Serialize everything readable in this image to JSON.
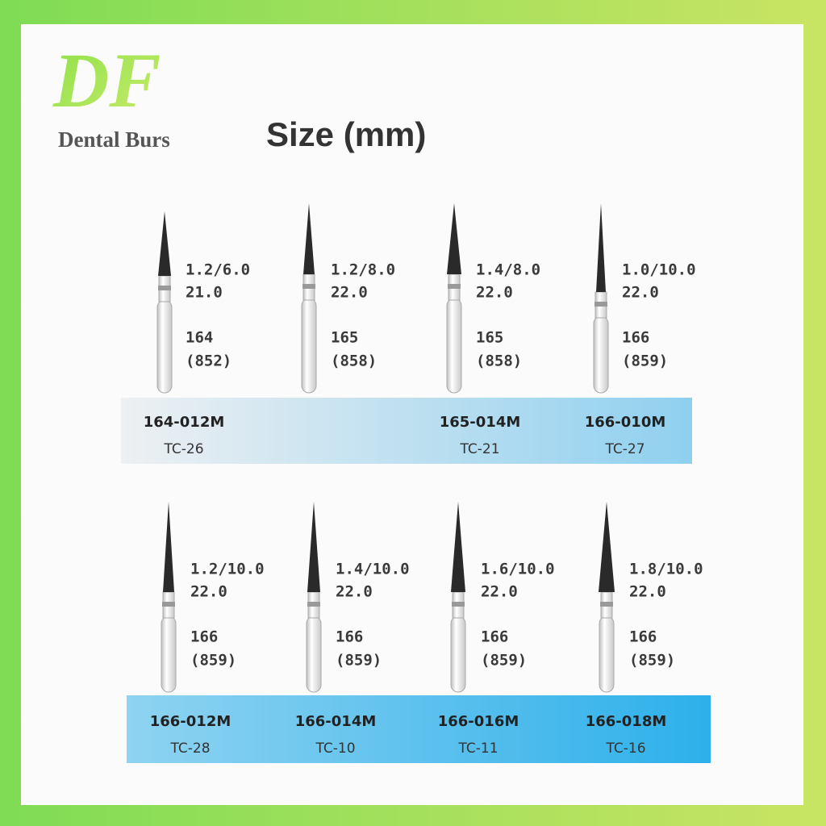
{
  "header": {
    "logo": "DF",
    "brand": "Dental Burs",
    "title": "Size (mm)"
  },
  "rows": [
    {
      "items": [
        {
          "spec": "1.2/6.0",
          "length": "21.0",
          "iso": "164",
          "alt": "(852)",
          "code": "164-012M",
          "tc": "TC-26"
        },
        {
          "spec": "1.2/8.0",
          "length": "22.0",
          "iso": "165",
          "alt": "(858)"
        },
        {
          "spec": "1.4/8.0",
          "length": "22.0",
          "iso": "165",
          "alt": "(858)",
          "code": "165-014M",
          "tc": "TC-21"
        },
        {
          "spec": "1.0/10.0",
          "length": "22.0",
          "iso": "166",
          "alt": "(859)",
          "code": "166-010M",
          "tc": "TC-27"
        }
      ]
    },
    {
      "items": [
        {
          "spec": "1.2/10.0",
          "length": "22.0",
          "iso": "166",
          "alt": "(859)",
          "code": "166-012M",
          "tc": "TC-28"
        },
        {
          "spec": "1.4/10.0",
          "length": "22.0",
          "iso": "166",
          "alt": "(859)",
          "code": "166-014M",
          "tc": "TC-10"
        },
        {
          "spec": "1.6/10.0",
          "length": "22.0",
          "iso": "166",
          "alt": "(859)",
          "code": "166-016M",
          "tc": "TC-11"
        },
        {
          "spec": "1.8/10.0",
          "length": "22.0",
          "iso": "166",
          "alt": "(859)",
          "code": "166-018M",
          "tc": "TC-16"
        }
      ]
    }
  ]
}
